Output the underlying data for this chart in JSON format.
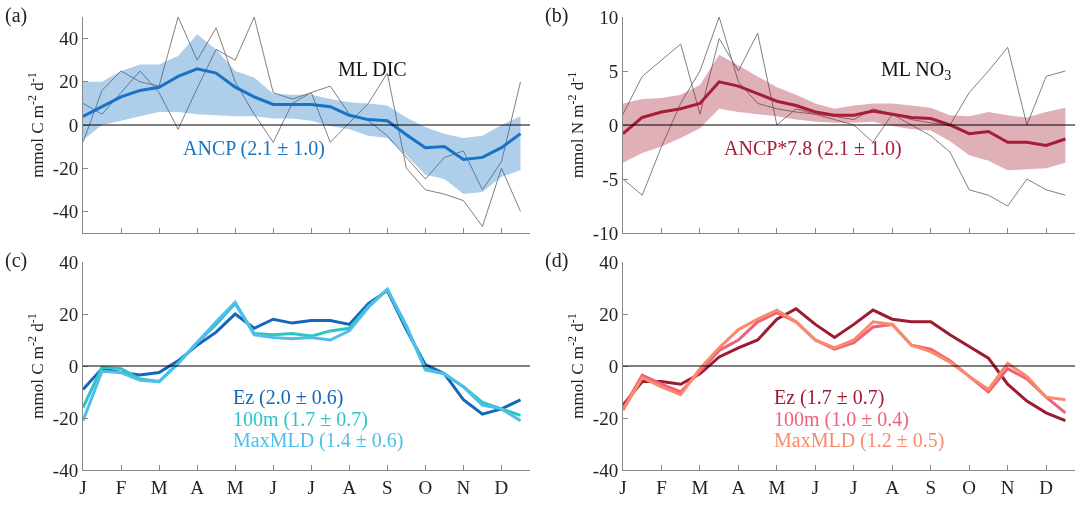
{
  "chart_data": [
    {
      "type": "line",
      "title": "(a)",
      "ylabel": "mmol C m$^{-2}$ d$^{-1}$",
      "annotations": [
        "ML DIC"
      ],
      "tick_labels": "y",
      "grid": false,
      "legend": false,
      "categories": [
        null,
        null,
        null,
        null,
        null,
        null,
        null,
        null,
        null,
        null,
        null,
        null,
        null,
        null,
        null,
        null,
        null,
        null,
        null,
        null,
        null,
        null,
        null,
        null
      ],
      "ylim": [
        -50,
        50
      ],
      "yticks": [
        -40,
        -20,
        0,
        20,
        40
      ],
      "ref_lines": [
        {
          "axis": "y",
          "value": 0,
          "color": "#000000"
        }
      ],
      "series": [
        {
          "color": "#808080",
          "values": [
            -8,
            16,
            25,
            20,
            18,
            50,
            30,
            45,
            20,
            5,
            -8,
            10,
            15,
            -8,
            1,
            10,
            24,
            -20,
            -30,
            -32,
            -35,
            -47,
            -20,
            -40
          ]
        },
        {
          "color": "#808080",
          "values": [
            10,
            5,
            15,
            25,
            15,
            -2,
            17,
            35,
            30,
            50,
            15,
            12,
            15,
            18,
            5,
            2,
            -5,
            -15,
            -25,
            -15,
            -12,
            -30,
            -17,
            20
          ]
        },
        {
          "name": "ANCP (2.1 ± 1.0)",
          "color": "#1a72c4",
          "values": [
            4,
            8.5,
            13,
            16,
            17.5,
            22.5,
            26,
            24,
            17.5,
            13,
            9.5,
            9.5,
            9.5,
            8.5,
            4.5,
            2.5,
            2,
            -4.5,
            -10.5,
            -10,
            -16,
            -15,
            -10.5,
            -4
          ],
          "upper": [
            20,
            20,
            25,
            28,
            28,
            32,
            42,
            35,
            25,
            22,
            14.5,
            14,
            14,
            12,
            10.5,
            10,
            9,
            3.5,
            -1,
            -4,
            -6,
            -5,
            0,
            4
          ],
          "lower": [
            -7,
            0,
            2,
            4,
            6,
            6,
            5,
            4.5,
            4,
            4,
            3,
            3,
            2,
            -0.5,
            -2,
            -5,
            -6,
            -14,
            -23,
            -25,
            -32,
            -31,
            -24,
            -21
          ]
        }
      ]
    },
    {
      "type": "line",
      "title": "(b)",
      "ylabel": "mmol N m$^{-2}$ d$^{-1}$",
      "annotations": [
        "ML NO$_{3}$"
      ],
      "tick_labels": "y",
      "grid": false,
      "legend": false,
      "categories": [
        null,
        null,
        null,
        null,
        null,
        null,
        null,
        null,
        null,
        null,
        null,
        null,
        null,
        null,
        null,
        null,
        null,
        null,
        null,
        null,
        null,
        null,
        null,
        null
      ],
      "ylim": [
        -10,
        10
      ],
      "yticks": [
        -10,
        -5,
        0,
        5,
        10
      ],
      "ref_lines": [
        {
          "axis": "y",
          "value": 0,
          "color": "#000000"
        }
      ],
      "series": [
        {
          "color": "#808080",
          "values": [
            -5,
            -6.5,
            -2,
            2,
            5,
            10,
            4,
            2,
            1.5,
            1.2,
            1,
            0.8,
            0.5,
            1.5,
            1,
            0.5,
            0.2,
            0,
            3,
            5,
            7.2,
            0,
            4.5,
            5
          ]
        },
        {
          "color": "#808080",
          "values": [
            1,
            4.5,
            6,
            7.5,
            1,
            8,
            5,
            8.5,
            0,
            1.5,
            1,
            0.5,
            0,
            -1.6,
            1,
            0,
            -1,
            -2.5,
            -6,
            -6.5,
            -7.5,
            -5,
            -6,
            -6.5
          ]
        },
        {
          "name": "ANCP*7.8 (2.1 ± 1.0)",
          "color": "#a51d36",
          "values": [
            -0.8,
            0.7,
            1.2,
            1.5,
            2,
            4,
            3.6,
            2.9,
            2.2,
            1.8,
            1.2,
            0.9,
            0.9,
            1.3,
            1,
            0.7,
            0.6,
            0,
            -0.8,
            -0.6,
            -1.6,
            -1.6,
            -1.9,
            -1.3
          ],
          "upper": [
            2,
            2.4,
            2.5,
            2.8,
            3.7,
            6.5,
            5.5,
            4.5,
            3.5,
            2.8,
            2,
            1.5,
            1.8,
            2,
            2,
            1.8,
            1.6,
            0.9,
            0.8,
            1.2,
            0.9,
            0.7,
            1.2,
            1.6
          ],
          "lower": [
            -3.5,
            -2.6,
            -2,
            -1.2,
            -0.3,
            1.5,
            1.2,
            1,
            0.8,
            0.5,
            0.3,
            0.2,
            0.2,
            0.3,
            -0.1,
            -0.4,
            -0.5,
            -1.5,
            -2.8,
            -3.3,
            -4.2,
            -4.1,
            -4,
            -3.5
          ]
        }
      ]
    },
    {
      "type": "line",
      "title": "(c)",
      "ylabel": "mmol C m$^{-2}$ d$^{-1}$",
      "grid": false,
      "legend": false,
      "categories": [
        "J",
        null,
        "F",
        null,
        "M",
        null,
        "A",
        null,
        "M",
        null,
        "J",
        null,
        "J",
        null,
        "A",
        null,
        "S",
        null,
        "O",
        null,
        "N",
        null,
        "D",
        null
      ],
      "ylim": [
        -40,
        40
      ],
      "yticks": [
        -40,
        -20,
        0,
        20,
        40
      ],
      "ref_lines": [
        {
          "axis": "y",
          "value": 0,
          "color": "#000000"
        }
      ],
      "series": [
        {
          "name": "Ez (2.0 ± 0.6)",
          "color": "#1565b8",
          "values": [
            -9,
            -1,
            -2.5,
            -3.5,
            -2.5,
            2,
            8,
            13,
            20,
            14.5,
            18,
            16.5,
            17.5,
            17.5,
            16,
            24,
            29,
            14,
            0.5,
            -3,
            -13,
            -18.5,
            -16.5,
            -13
          ]
        },
        {
          "name": "100m (1.7 ± 0.7)",
          "color": "#2ec4c4",
          "values": [
            -16,
            -0.5,
            -1,
            -5,
            -6,
            1,
            9,
            16,
            24,
            12.5,
            12,
            12.5,
            11.5,
            13.5,
            14.5,
            23,
            29.5,
            15,
            -1,
            -3,
            -8,
            -14,
            -16.5,
            -19
          ]
        },
        {
          "name": "MaxMLD (1.4 ± 0.6)",
          "color": "#4dbfea",
          "values": [
            -21,
            -2,
            -2.5,
            -5.5,
            -6,
            1,
            9,
            17,
            24.5,
            12,
            11,
            10.5,
            11,
            10,
            13.5,
            22.5,
            29.5,
            15.5,
            -1.5,
            -3,
            -8,
            -15,
            -16.5,
            -21
          ]
        }
      ]
    },
    {
      "type": "line",
      "title": "(d)",
      "ylabel": "mmol C m$^{-2}$ d$^{-1}$",
      "grid": false,
      "legend": false,
      "categories": [
        "J",
        null,
        "F",
        null,
        "M",
        null,
        "A",
        null,
        "M",
        null,
        "J",
        null,
        "J",
        null,
        "A",
        null,
        "S",
        null,
        "O",
        null,
        "N",
        null,
        "D",
        null
      ],
      "ylim": [
        -40,
        40
      ],
      "yticks": [
        -40,
        -20,
        0,
        20,
        40
      ],
      "ref_lines": [
        {
          "axis": "y",
          "value": 0,
          "color": "#000000"
        }
      ],
      "series": [
        {
          "name": "Ez (1.7 ± 0.7)",
          "color": "#9b1b30",
          "values": [
            -15,
            -6,
            -6,
            -7,
            -3,
            3.5,
            7,
            10,
            18,
            22,
            16,
            11,
            16,
            21.5,
            18,
            17,
            17,
            12,
            7.5,
            3,
            -7,
            -13.5,
            -18,
            -21
          ]
        },
        {
          "name": "100m (1.0 ± 0.4)",
          "color": "#f0607a",
          "values": [
            -16.5,
            -3.5,
            -7,
            -10,
            -2,
            6,
            10,
            17,
            20.5,
            17,
            10,
            6.5,
            9,
            15,
            16,
            8,
            6.5,
            2,
            -4,
            -10,
            -1,
            -5,
            -12,
            -18
          ]
        },
        {
          "name": "MaxMLD (1.2 ± 0.5)",
          "color": "#fb8a6a",
          "values": [
            -17,
            -4.5,
            -8,
            -11,
            -1,
            7,
            14,
            18,
            21.5,
            17,
            10,
            7,
            10,
            17,
            16,
            8,
            5.5,
            1.5,
            -4,
            -9,
            1,
            -4,
            -12,
            -13
          ]
        }
      ]
    }
  ]
}
